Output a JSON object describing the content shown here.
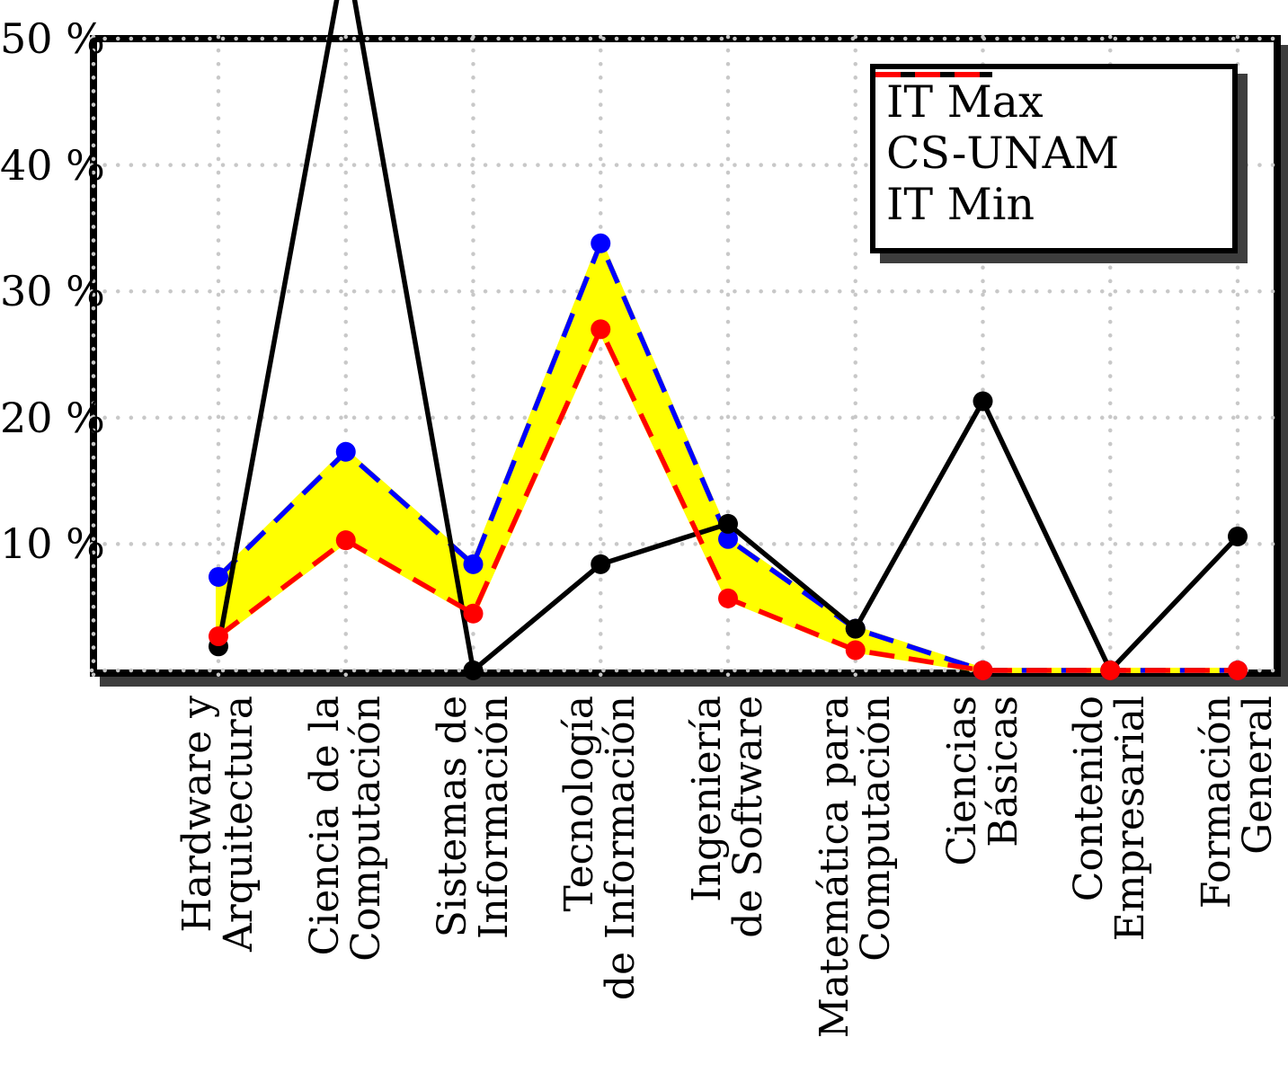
{
  "chart_data": {
    "type": "line",
    "title": "",
    "categories": [
      "Hardware y\nArquitectura",
      "Ciencia de la\nComputación",
      "Sistemas de\nInformación",
      "Tecnología\nde Información",
      "Ingeniería\nde Software",
      "Matemática para\nComputación",
      "Ciencias\nBásicas",
      "Contenido\nEmpresarial",
      "Formación\nGeneral"
    ],
    "series": [
      {
        "name": "IT Max",
        "color": "#0000ff",
        "line_style": "dashed",
        "values": [
          7.4,
          17.3,
          8.4,
          33.8,
          10.4,
          3.3,
          0,
          0,
          0
        ]
      },
      {
        "name": "CS-UNAM",
        "color": "#000000",
        "line_style": "solid",
        "values": [
          1.9,
          57.0,
          0.0,
          8.4,
          11.6,
          3.3,
          21.3,
          0.0,
          10.6
        ]
      },
      {
        "name": "IT Min",
        "color": "#ff0000",
        "line_style": "dashed",
        "values": [
          2.7,
          10.3,
          4.5,
          27.0,
          5.7,
          1.6,
          0,
          0,
          0
        ]
      }
    ],
    "band_fill": {
      "between": [
        "IT Max",
        "IT Min"
      ],
      "color": "#ffff00"
    },
    "yticks": [
      {
        "value": 10,
        "label": "10 %"
      },
      {
        "value": 20,
        "label": "20 %"
      },
      {
        "value": 30,
        "label": "30 %"
      },
      {
        "value": 40,
        "label": "40 %"
      },
      {
        "value": 50,
        "label": "50 %"
      }
    ],
    "ylim": [
      0,
      50
    ],
    "grid": "dotted",
    "legend_position": "top-right"
  },
  "style": {
    "background": "#ffffff",
    "frame_color": "#000000",
    "grid_color": "#c8c8c8",
    "shadow_color": "#3d3d3d"
  }
}
